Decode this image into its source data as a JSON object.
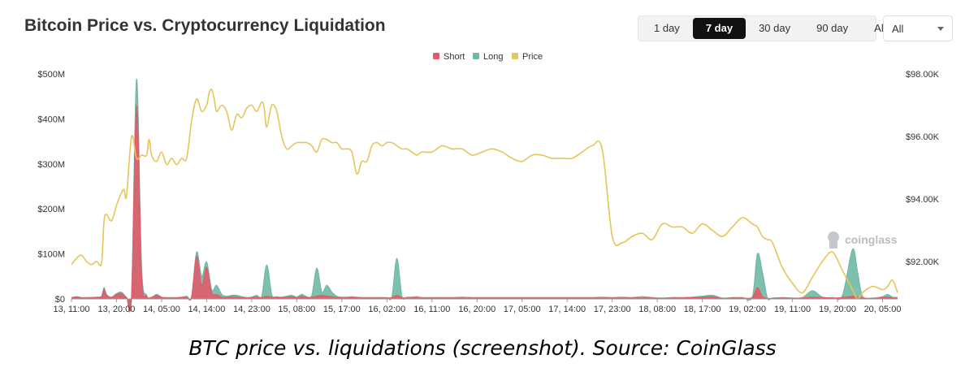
{
  "header": {
    "title": "Bitcoin Price vs. Cryptocurrency Liquidation",
    "range_tabs": [
      {
        "label": "1 day",
        "active": false
      },
      {
        "label": "7 day",
        "active": true
      },
      {
        "label": "30 day",
        "active": false
      },
      {
        "label": "90 day",
        "active": false
      },
      {
        "label": "All",
        "active": false
      }
    ],
    "coin_select": {
      "value": "All"
    }
  },
  "watermark": "coinglass",
  "caption": "BTC price vs. liquidations (screenshot). Source: CoinGlass",
  "colors": {
    "short": "#e05c6a",
    "long": "#6fb9a4",
    "price": "#e6c55b"
  },
  "chart_data": {
    "type": "area",
    "legend": [
      "Short",
      "Long",
      "Price"
    ],
    "legend_position": "top-center",
    "grid": false,
    "x_tick_labels": [
      "13, 11:00",
      "13, 20:00",
      "14, 05:00",
      "14, 14:00",
      "14, 23:00",
      "15, 08:00",
      "15, 17:00",
      "16, 02:00",
      "16, 11:00",
      "16, 20:00",
      "17, 05:00",
      "17, 14:00",
      "17, 23:00",
      "18, 08:00",
      "18, 17:00",
      "19, 02:00",
      "19, 11:00",
      "19, 20:00",
      "20, 05:00"
    ],
    "x_range_hours": [
      0,
      165
    ],
    "y_left": {
      "ticks": [
        "$0",
        "$100M",
        "$200M",
        "$300M",
        "$400M",
        "$500M"
      ],
      "range": [
        0,
        500
      ],
      "unit": "USD millions"
    },
    "y_right": {
      "ticks": [
        "$92.00K",
        "$94.00K",
        "$96.00K",
        "$98.00K"
      ],
      "range": [
        90.8,
        98.0
      ],
      "unit": "USD thousands"
    },
    "series": [
      {
        "name": "Price",
        "axis": "right",
        "x": [
          0,
          1,
          2,
          3,
          4,
          5,
          6,
          6.5,
          7,
          8,
          9,
          10,
          10.5,
          11,
          12,
          13,
          14,
          15,
          15.5,
          16,
          17,
          18,
          19,
          20,
          21,
          22,
          23,
          24,
          25,
          26,
          27,
          27.5,
          28,
          28.5,
          29,
          30,
          31,
          32,
          33,
          34,
          35,
          36,
          37,
          38,
          38.5,
          39,
          40,
          41,
          42,
          43,
          44,
          45,
          46,
          47,
          48,
          49,
          50,
          51,
          52,
          53,
          54,
          55,
          56,
          57,
          58,
          59,
          60,
          61,
          62,
          63,
          64,
          65,
          66,
          67,
          68,
          69,
          70,
          72,
          74,
          76,
          78,
          80,
          82,
          84,
          86,
          88,
          90,
          92,
          94,
          96,
          98,
          100,
          102,
          104,
          106,
          108,
          110,
          112,
          114,
          116,
          118,
          120,
          122,
          124,
          126,
          128,
          130,
          132,
          134,
          136,
          137,
          138,
          139,
          140,
          142,
          144,
          146,
          148,
          150,
          152,
          154,
          156,
          157,
          158,
          160,
          162,
          163,
          164,
          165
        ],
        "values": [
          91.9,
          92.1,
          92.2,
          92.0,
          91.9,
          92.0,
          91.95,
          93.3,
          93.5,
          93.3,
          93.8,
          94.2,
          94.3,
          94.1,
          96.0,
          95.3,
          95.4,
          95.4,
          95.9,
          95.4,
          95.2,
          95.5,
          95.1,
          95.3,
          95.1,
          95.3,
          95.3,
          96.5,
          97.2,
          96.8,
          97.0,
          97.4,
          97.5,
          97.2,
          96.8,
          97.0,
          96.8,
          96.2,
          96.7,
          96.6,
          96.9,
          97.0,
          96.8,
          97.1,
          96.9,
          96.3,
          97.0,
          96.8,
          96.0,
          95.6,
          95.7,
          95.8,
          95.8,
          95.8,
          95.7,
          95.5,
          95.9,
          95.9,
          95.8,
          95.8,
          95.6,
          95.6,
          95.5,
          94.8,
          95.2,
          95.2,
          95.7,
          95.8,
          95.7,
          95.8,
          95.8,
          95.7,
          95.6,
          95.6,
          95.5,
          95.4,
          95.5,
          95.5,
          95.7,
          95.6,
          95.6,
          95.4,
          95.5,
          95.6,
          95.5,
          95.3,
          95.2,
          95.4,
          95.4,
          95.3,
          95.3,
          95.3,
          95.5,
          95.7,
          95.6,
          92.8,
          92.6,
          92.8,
          92.9,
          92.7,
          93.2,
          93.1,
          93.1,
          92.9,
          93.2,
          93.0,
          92.8,
          93.1,
          93.4,
          93.2,
          93.1,
          92.8,
          92.7,
          92.6,
          91.8,
          91.3,
          91.0,
          91.5,
          92.0,
          92.3,
          91.7,
          91.1,
          90.8,
          91.0,
          91.2,
          91.1,
          91.2,
          91.4,
          91.0
        ]
      },
      {
        "name": "Long",
        "axis": "left",
        "x": [
          0,
          1,
          2,
          3,
          5,
          6,
          6.5,
          7,
          8,
          9,
          10,
          11,
          12,
          13,
          14,
          15,
          16,
          17,
          18,
          19,
          20,
          21,
          22,
          23,
          24,
          25,
          26,
          27,
          28,
          29,
          30,
          31,
          32,
          33,
          34,
          35,
          36,
          37,
          38,
          39,
          40,
          41,
          42,
          43,
          44,
          45,
          46,
          47,
          48,
          49,
          50,
          51,
          52,
          53,
          54,
          55,
          56,
          57,
          58,
          59,
          60,
          61,
          62,
          63,
          64,
          65,
          66,
          67,
          68,
          69,
          70,
          72,
          74,
          76,
          78,
          80,
          82,
          84,
          86,
          88,
          90,
          92,
          94,
          96,
          98,
          100,
          102,
          104,
          106,
          108,
          110,
          112,
          114,
          116,
          118,
          120,
          122,
          124,
          126,
          128,
          130,
          132,
          134,
          136,
          137,
          138,
          139,
          140,
          142,
          144,
          146,
          148,
          150,
          152,
          154,
          156,
          157,
          158,
          160,
          162,
          163,
          164,
          165
        ],
        "values": [
          3,
          5,
          3,
          3,
          4,
          6,
          25,
          10,
          4,
          12,
          15,
          4,
          8,
          488,
          70,
          8,
          4,
          10,
          4,
          3,
          3,
          3,
          4,
          6,
          6,
          104,
          50,
          82,
          20,
          30,
          10,
          6,
          8,
          8,
          5,
          3,
          4,
          8,
          6,
          75,
          10,
          5,
          4,
          6,
          8,
          4,
          10,
          5,
          8,
          68,
          15,
          30,
          15,
          6,
          4,
          4,
          5,
          4,
          3,
          3,
          3,
          3,
          3,
          3,
          5,
          90,
          6,
          4,
          4,
          5,
          3,
          3,
          3,
          3,
          4,
          3,
          3,
          3,
          3,
          3,
          3,
          3,
          3,
          3,
          3,
          3,
          3,
          3,
          4,
          3,
          4,
          3,
          5,
          3,
          2,
          3,
          3,
          4,
          6,
          8,
          2,
          3,
          3,
          5,
          100,
          60,
          2,
          2,
          3,
          2,
          3,
          18,
          4,
          3,
          8,
          110,
          60,
          6,
          2,
          5,
          10,
          4,
          3
        ]
      },
      {
        "name": "Short",
        "axis": "left",
        "x": [
          0,
          1,
          2,
          3,
          5,
          6,
          6.5,
          7,
          8,
          9,
          10,
          11,
          12,
          13,
          14,
          15,
          16,
          17,
          18,
          19,
          20,
          21,
          22,
          23,
          24,
          25,
          26,
          27,
          28,
          29,
          30,
          31,
          32,
          33,
          34,
          35,
          36,
          37,
          38,
          39,
          40,
          41,
          42,
          43,
          44,
          45,
          46,
          47,
          48,
          49,
          50,
          51,
          52,
          53,
          54,
          55,
          56,
          57,
          58,
          59,
          60,
          61,
          62,
          63,
          64,
          65,
          66,
          67,
          68,
          69,
          70,
          72,
          74,
          76,
          78,
          80,
          82,
          84,
          86,
          88,
          90,
          92,
          94,
          96,
          98,
          100,
          102,
          104,
          106,
          108,
          110,
          112,
          114,
          116,
          118,
          120,
          122,
          124,
          126,
          128,
          130,
          132,
          134,
          136,
          137,
          138,
          139,
          140,
          142,
          144,
          146,
          148,
          150,
          152,
          154,
          156,
          157,
          158,
          160,
          162,
          163,
          164,
          165
        ],
        "values": [
          2,
          4,
          2,
          2,
          3,
          5,
          20,
          8,
          3,
          10,
          12,
          3,
          6,
          430,
          50,
          6,
          3,
          8,
          3,
          2,
          2,
          2,
          3,
          4,
          4,
          95,
          30,
          70,
          14,
          10,
          4,
          3,
          5,
          4,
          3,
          2,
          3,
          4,
          3,
          6,
          4,
          3,
          3,
          4,
          5,
          3,
          6,
          3,
          4,
          6,
          8,
          6,
          5,
          3,
          2,
          2,
          3,
          2,
          2,
          2,
          2,
          2,
          2,
          2,
          3,
          8,
          3,
          2,
          2,
          3,
          2,
          2,
          2,
          2,
          2,
          2,
          2,
          2,
          2,
          2,
          2,
          2,
          2,
          2,
          2,
          2,
          2,
          2,
          2,
          2,
          2,
          2,
          2,
          2,
          1,
          2,
          2,
          3,
          4,
          5,
          1,
          2,
          2,
          3,
          25,
          5,
          1,
          1,
          2,
          1,
          2,
          4,
          3,
          2,
          3,
          6,
          4,
          2,
          1,
          3,
          4,
          2,
          2
        ]
      }
    ]
  }
}
